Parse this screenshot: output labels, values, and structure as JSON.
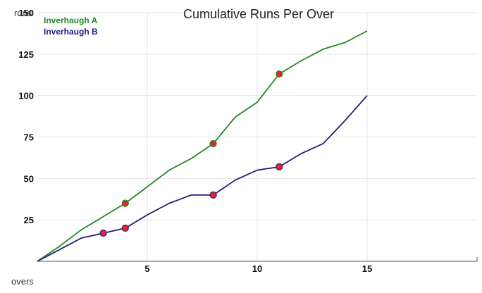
{
  "chart_data": {
    "type": "line",
    "title": "Cumulative Runs Per Over",
    "xlabel": "overs",
    "ylabel": "runs",
    "xlim": [
      0,
      20
    ],
    "ylim": [
      0,
      150
    ],
    "x_ticks": [
      5,
      10,
      15
    ],
    "y_ticks": [
      25,
      50,
      75,
      100,
      125,
      150
    ],
    "grid": true,
    "legend": "top-left",
    "series": [
      {
        "name": "Inverhaugh A",
        "color": "#228822",
        "x": [
          0,
          1,
          2,
          3,
          4,
          5,
          6,
          7,
          8,
          9,
          10,
          11,
          12,
          13,
          14,
          15
        ],
        "y": [
          0,
          9,
          19,
          27,
          35,
          45,
          55,
          62,
          71,
          87,
          96,
          113,
          121,
          128,
          132,
          139
        ],
        "markers": [
          {
            "x": 4,
            "y": 35
          },
          {
            "x": 8,
            "y": 71
          },
          {
            "x": 11,
            "y": 113
          }
        ]
      },
      {
        "name": "Inverhaugh B",
        "color": "#1f1f7a",
        "x": [
          0,
          1,
          2,
          3,
          4,
          5,
          6,
          7,
          8,
          9,
          10,
          11,
          12,
          13,
          14,
          15
        ],
        "y": [
          0,
          7,
          14,
          17,
          20,
          28,
          35,
          40,
          40,
          49,
          55,
          57,
          65,
          71,
          85,
          100
        ],
        "markers": [
          {
            "x": 3,
            "y": 17
          },
          {
            "x": 4,
            "y": 20
          },
          {
            "x": 8,
            "y": 40
          },
          {
            "x": 11,
            "y": 57
          }
        ]
      }
    ],
    "marker_color": "#e8232a"
  }
}
